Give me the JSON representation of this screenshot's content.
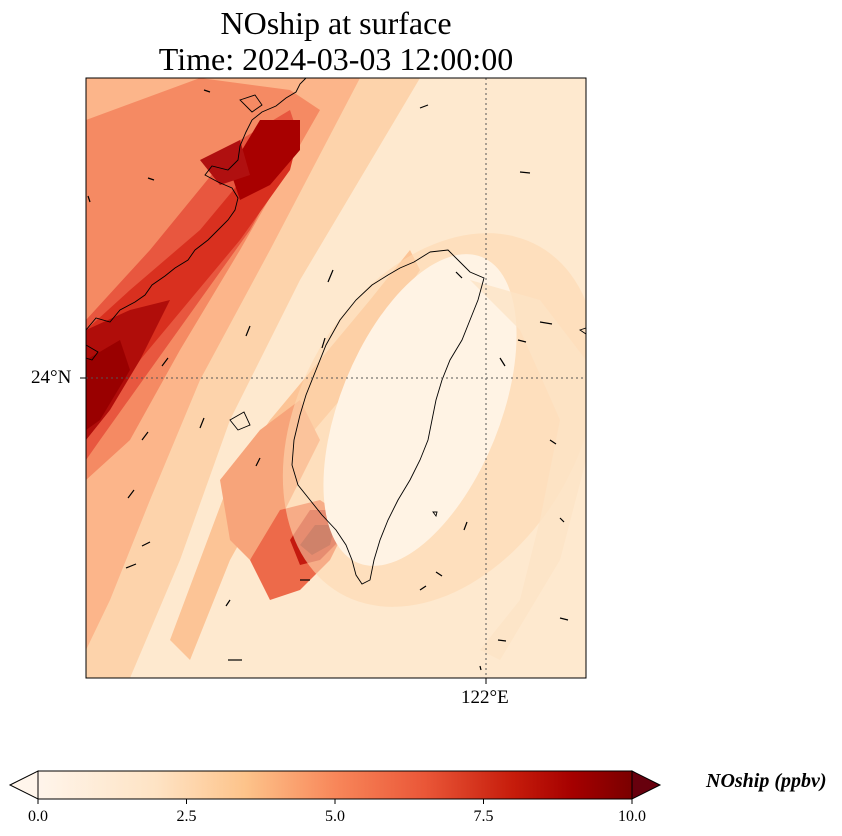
{
  "title_line1": "NOship at surface",
  "title_line2": "Time: 2024-03-03 12:00:00",
  "lat_label": "24°N",
  "lon_label": "122°E",
  "colorbar": {
    "label": "NOship (ppbv)",
    "ticks": [
      "0.0",
      "2.5",
      "5.0",
      "7.5",
      "10.0"
    ],
    "min": 0,
    "max": 10,
    "colormap": [
      "#fff5eb",
      "#fee6ce",
      "#fdd0a2",
      "#fdae6b",
      "#fd8d3c",
      "#f16913",
      "#d94801",
      "#a63603",
      "#7f2704"
    ],
    "extend": "both"
  },
  "colors": {
    "coastline": "#000000",
    "gridline": "#555555",
    "frame": "#000000",
    "low": "#fff5eb",
    "high": "#67000d"
  }
}
